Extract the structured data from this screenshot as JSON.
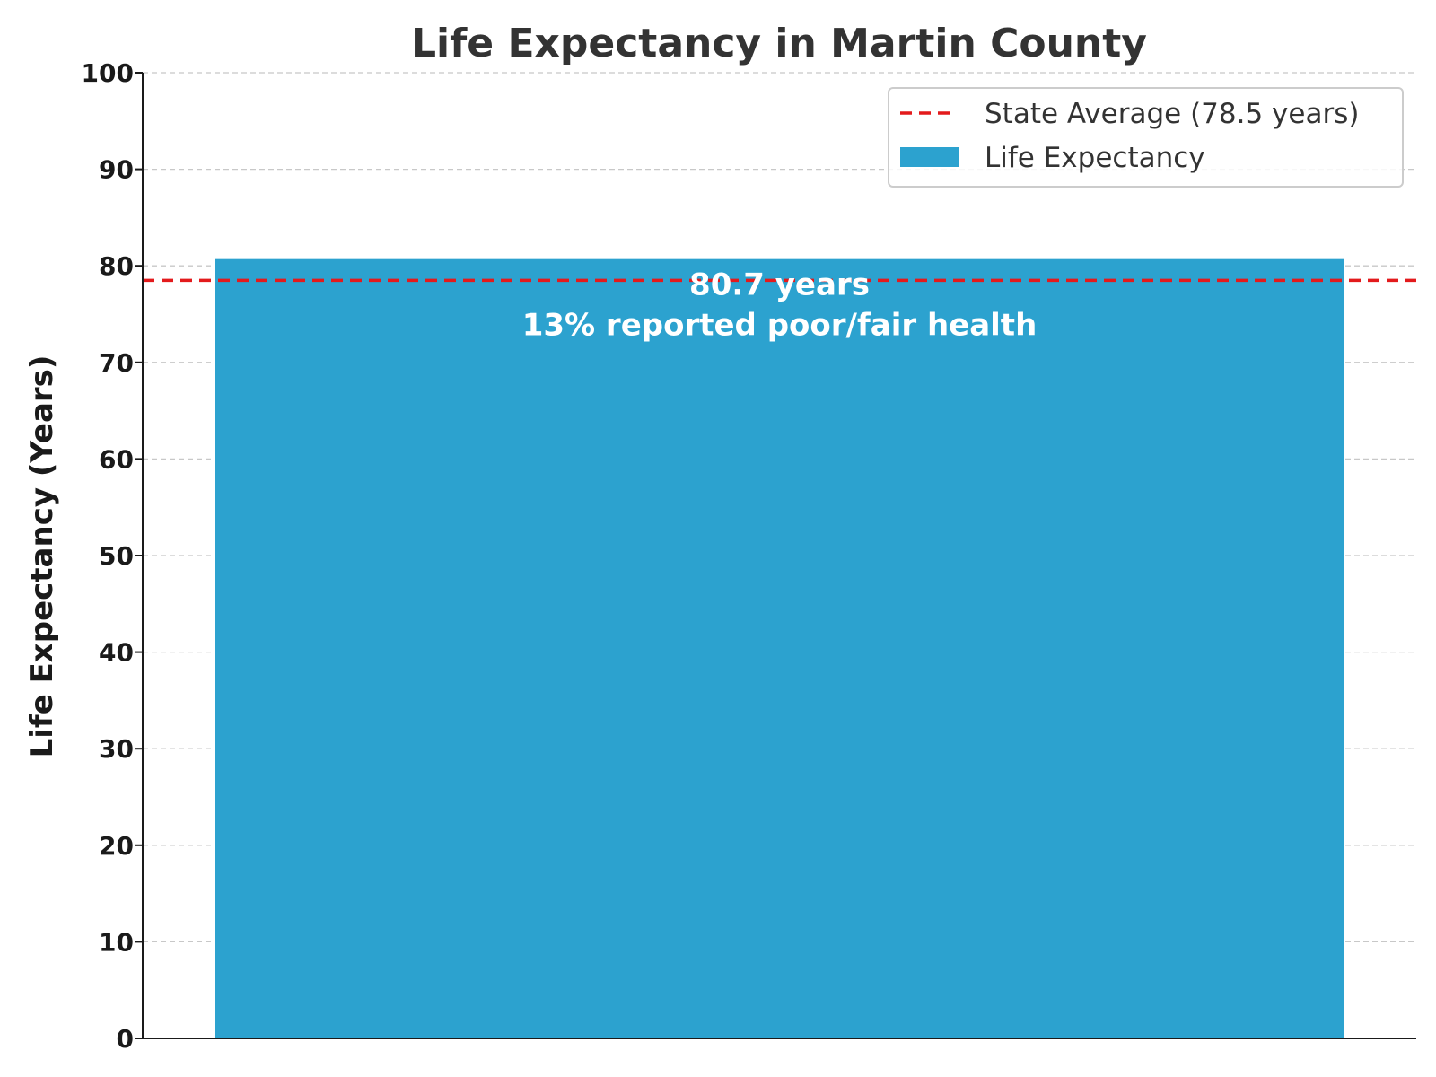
{
  "chart_data": {
    "type": "bar",
    "title": "Life Expectancy in Martin County",
    "xlabel": "",
    "ylabel": "Life Expectancy (Years)",
    "ylim": [
      0,
      100
    ],
    "yticks": [
      0,
      10,
      20,
      30,
      40,
      50,
      60,
      70,
      80,
      90,
      100
    ],
    "grid": true,
    "categories": [
      ""
    ],
    "series": [
      {
        "name": "Life Expectancy",
        "values": [
          80.7
        ],
        "color": "#2ca2cf"
      }
    ],
    "bar_labels": [
      {
        "line1": "80.7 years",
        "line2": "13% reported poor/fair health"
      }
    ],
    "reference_line": {
      "name": "State Average (78.5 years)",
      "value": 78.5,
      "color": "#e31a1c",
      "style": "dashed"
    },
    "legend": {
      "placement": "top-right",
      "entries": [
        {
          "label": "State Average (78.5 years)",
          "kind": "line",
          "color": "#e31a1c"
        },
        {
          "label": "Life Expectancy",
          "kind": "bar",
          "color": "#2ca2cf"
        }
      ]
    }
  }
}
